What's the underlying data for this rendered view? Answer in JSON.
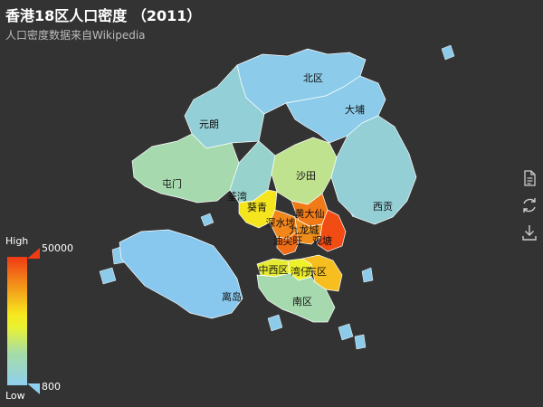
{
  "title": "香港18区人口密度 （2011）",
  "subtitle": "人口密度数据来自Wikipedia",
  "visual_map": {
    "high_label": "High",
    "low_label": "Low",
    "max": 50000,
    "min": 800,
    "max_text": "50000",
    "min_text": "800",
    "colors": [
      "#8fd0f0",
      "#a6dca6",
      "#e8f233",
      "#f7e81e",
      "#f2921a",
      "#f03a14"
    ]
  },
  "districts": [
    {
      "name": "北区",
      "color": "#8ccbea"
    },
    {
      "name": "大埔",
      "color": "#8ccbea"
    },
    {
      "name": "元朗",
      "color": "#93cfd6"
    },
    {
      "name": "屯门",
      "color": "#a7d9ae"
    },
    {
      "name": "沙田",
      "color": "#bfe28e"
    },
    {
      "name": "西贡",
      "color": "#94cfd6"
    },
    {
      "name": "荃湾",
      "color": "#97d2cc"
    },
    {
      "name": "葵青",
      "color": "#f4e51e"
    },
    {
      "name": "离岛",
      "color": "#88c8ee"
    },
    {
      "name": "深水埗",
      "color": "#f2861a"
    },
    {
      "name": "黄大仙",
      "color": "#f17a18"
    },
    {
      "name": "九龙城",
      "color": "#f18e1a"
    },
    {
      "name": "油尖旺",
      "color": "#f06c16"
    },
    {
      "name": "观塘",
      "color": "#f04c14"
    },
    {
      "name": "中西区",
      "color": "#e6ec33"
    },
    {
      "name": "湾仔",
      "color": "#eef02a"
    },
    {
      "name": "东区",
      "color": "#f6be1e"
    },
    {
      "name": "南区",
      "color": "#a7d9ae"
    }
  ],
  "toolbox": {
    "data_view": "data-view-icon",
    "restore": "restore-icon",
    "save_image": "save-image-icon"
  }
}
